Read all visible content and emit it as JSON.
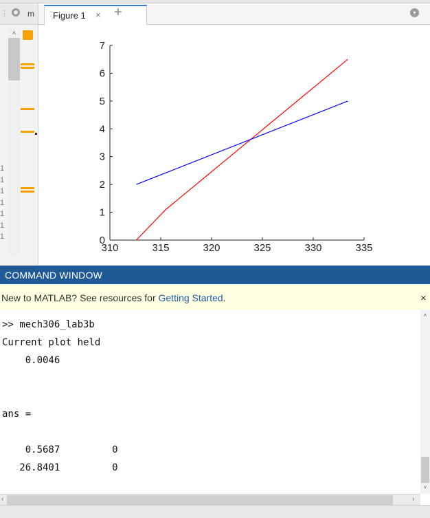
{
  "editor": {
    "tab_label": "m",
    "line_numbers": [
      "1",
      "1",
      "1",
      "1",
      "1",
      "1",
      "1"
    ]
  },
  "figure": {
    "tab_label": "Figure 1",
    "close_glyph": "×",
    "add_glyph": "+",
    "menu_glyph": "▾"
  },
  "chart_data": {
    "type": "line",
    "title": "",
    "xlabel": "",
    "ylabel": "",
    "xlim": [
      310,
      335
    ],
    "ylim": [
      0,
      7
    ],
    "xticks": [
      "310",
      "315",
      "320",
      "325",
      "330",
      "335"
    ],
    "yticks": [
      "0",
      "1",
      "2",
      "3",
      "4",
      "5",
      "6",
      "7"
    ],
    "grid": false,
    "series": [
      {
        "color": "#ff0000",
        "points": [
          [
            312.6,
            0
          ],
          [
            315.5,
            1.1
          ],
          [
            333.4,
            6.5
          ]
        ]
      },
      {
        "color": "#0000ff",
        "points": [
          [
            312.6,
            2.0
          ],
          [
            333.4,
            5.0
          ]
        ]
      }
    ]
  },
  "command_window": {
    "title": "COMMAND WINDOW",
    "banner_text": "New to MATLAB? See resources for ",
    "banner_link": "Getting Started",
    "banner_end": ".",
    "close_glyph": "×",
    "lines": [
      ">> mech306_lab3b",
      "Current plot held",
      "    0.0046",
      "",
      "",
      "ans =",
      "",
      "    0.5687         0",
      "   26.8401         0"
    ]
  },
  "colors": {
    "header": "#1f5a96",
    "banner": "#ffffe1",
    "marker": "#f5a200"
  }
}
